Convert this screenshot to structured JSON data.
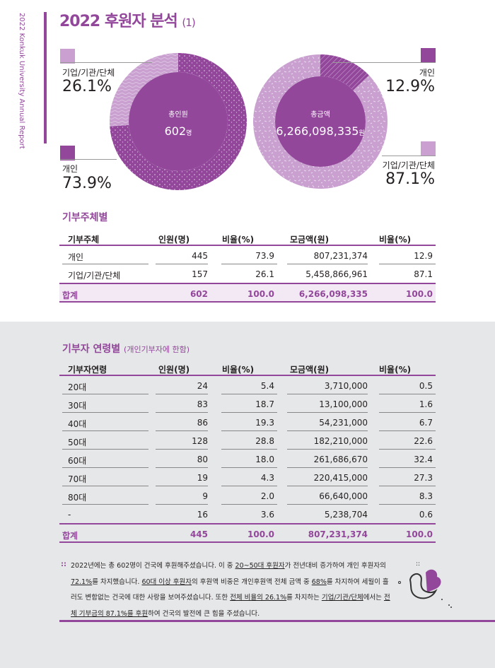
{
  "side_text": "2022 Konkuk University Annual Report",
  "title": "2022 후원자 분석",
  "title_suffix": "(1)",
  "donut_people": {
    "center_label": "총인원",
    "center_value": "602",
    "center_unit": "명",
    "segments": [
      {
        "label": "기업/기관/단체",
        "pct_text": "26.1%",
        "value": 26.1,
        "color": "#c9a0d0"
      },
      {
        "label": "개인",
        "pct_text": "73.9%",
        "value": 73.9,
        "color": "#92479b"
      }
    ]
  },
  "donut_amount": {
    "center_label": "총금액",
    "center_value": "6,266,098,335",
    "center_unit": "원",
    "segments": [
      {
        "label": "개인",
        "pct_text": "12.9%",
        "value": 12.9,
        "color": "#92479b"
      },
      {
        "label": "기업/기관/단체",
        "pct_text": "87.1%",
        "value": 87.1,
        "color": "#c9a0d0"
      }
    ]
  },
  "table1": {
    "heading": "기부주체별",
    "headers": [
      "기부주체",
      "인원(명)",
      "비율(%)",
      "모금액(원)",
      "비율(%)"
    ],
    "rows": [
      [
        "개인",
        "445",
        "73.9",
        "807,231,374",
        "12.9"
      ],
      [
        "기업/기관/단체",
        "157",
        "26.1",
        "5,458,866,961",
        "87.1"
      ]
    ],
    "total": [
      "합계",
      "602",
      "100.0",
      "6,266,098,335",
      "100.0"
    ]
  },
  "table2": {
    "heading": "기부자 연령별",
    "heading_note": "(개인기부자에 한함)",
    "headers": [
      "기부자연령",
      "인원(명)",
      "비율(%)",
      "모금액(원)",
      "비율(%)"
    ],
    "rows": [
      [
        "20대",
        "24",
        "5.4",
        "3,710,000",
        "0.5"
      ],
      [
        "30대",
        "83",
        "18.7",
        "13,100,000",
        "1.6"
      ],
      [
        "40대",
        "86",
        "19.3",
        "54,231,000",
        "6.7"
      ],
      [
        "50대",
        "128",
        "28.8",
        "182,210,000",
        "22.6"
      ],
      [
        "60대",
        "80",
        "18.0",
        "261,686,670",
        "32.4"
      ],
      [
        "70대",
        "19",
        "4.3",
        "220,415,000",
        "27.3"
      ],
      [
        "80대",
        "9",
        "2.0",
        "66,640,000",
        "8.3"
      ],
      [
        "-",
        "16",
        "3.6",
        "5,238,704",
        "0.6"
      ]
    ],
    "total": [
      "합계",
      "445",
      "100.0",
      "807,231,374",
      "100.0"
    ]
  },
  "note": {
    "bullet": "::",
    "parts": [
      {
        "t": "2022년에는 총 602명이 건국에 후원해주셨습니다. 이 중 ",
        "u": false
      },
      {
        "t": "20~50대 후원자",
        "u": true
      },
      {
        "t": "가 전년대비 증가하여 개인 후원자의 ",
        "u": false
      },
      {
        "t": "72.1%",
        "u": true
      },
      {
        "t": "를 차지했습니다. ",
        "u": false
      },
      {
        "t": "60대 이상 후원자",
        "u": true
      },
      {
        "t": "의 후원액 비중은 개인후원액 전체 금액 중 ",
        "u": false
      },
      {
        "t": "68%",
        "u": true
      },
      {
        "t": "를 차지하여 세월이 흘러도 변함없는 건국에 대한 사랑을 보여주셨습니다. 또한 ",
        "u": false
      },
      {
        "t": "전체 비율의 26.1%",
        "u": true
      },
      {
        "t": "를 차지하는 ",
        "u": false
      },
      {
        "t": "기업/기관/단체",
        "u": true
      },
      {
        "t": "에서는 ",
        "u": false
      },
      {
        "t": "전체 기부금의 87.1%를 후원",
        "u": true
      },
      {
        "t": "하여 건국의 발전에 큰 힘을 주셨습니다.",
        "u": false
      }
    ]
  },
  "colors": {
    "accent": "#92479b",
    "light": "#c9a0d0",
    "band": "#f3e9f4",
    "gray_bg": "#e6e7e8"
  }
}
